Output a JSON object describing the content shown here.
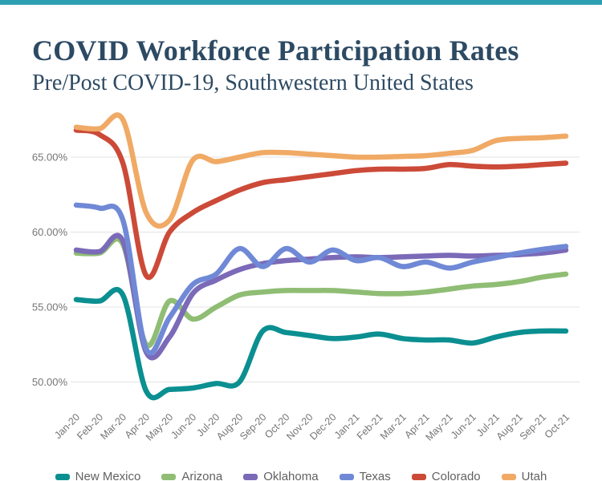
{
  "page": {
    "title": "COVID Workforce Participation Rates",
    "subtitle": "Pre/Post COVID-19, Southwestern United States",
    "accent_bar_color": "#2e9fb0",
    "title_color": "#2d4a63",
    "axis_text_color": "#757575",
    "legend_text_color": "#616161",
    "gridline_color": "#e3e3e3"
  },
  "chart_data": {
    "type": "line",
    "line_style": "smooth",
    "title": "COVID Workforce Participation Rates",
    "subtitle": "Pre/Post COVID-19, Southwestern United States",
    "xlabel": "",
    "ylabel": "",
    "unit": "%",
    "grid": "horizontal",
    "legend_position": "bottom",
    "ylim": [
      48.5,
      68.0
    ],
    "y_ticks": [
      50,
      55,
      60,
      65
    ],
    "y_tick_labels": [
      "50.00%",
      "55.00%",
      "60.00%",
      "65.00%"
    ],
    "categories": [
      "Jan-20",
      "Feb-20",
      "Mar-20",
      "Apr-20",
      "May-20",
      "Jun-20",
      "Jul-20",
      "Aug-20",
      "Sep-20",
      "Oct-20",
      "Nov-20",
      "Dec-20",
      "Jan-21",
      "Feb-21",
      "Mar-21",
      "Apr-21",
      "May-21",
      "Jun-21",
      "Jul-21",
      "Aug-21",
      "Sep-21",
      "Oct-21"
    ],
    "series": [
      {
        "name": "New Mexico",
        "color": "#0b8f91",
        "values": [
          55.5,
          55.4,
          55.8,
          49.4,
          49.5,
          49.6,
          49.9,
          50.0,
          53.4,
          53.3,
          53.1,
          52.9,
          53.0,
          53.2,
          52.9,
          52.8,
          52.8,
          52.6,
          53.0,
          53.3,
          53.4,
          53.4
        ]
      },
      {
        "name": "Arizona",
        "color": "#8fbd74",
        "values": [
          58.6,
          58.6,
          59.2,
          52.5,
          55.4,
          54.2,
          55.0,
          55.8,
          56.0,
          56.1,
          56.1,
          56.1,
          56.0,
          55.9,
          55.9,
          56.0,
          56.2,
          56.4,
          56.5,
          56.7,
          57.0,
          57.2
        ]
      },
      {
        "name": "Oklahoma",
        "color": "#7a6ab8",
        "values": [
          58.8,
          58.7,
          59.4,
          52.0,
          53.0,
          55.9,
          56.8,
          57.5,
          57.9,
          58.1,
          58.2,
          58.3,
          58.35,
          58.3,
          58.35,
          58.4,
          58.45,
          58.4,
          58.45,
          58.5,
          58.6,
          58.8
        ]
      },
      {
        "name": "Texas",
        "color": "#7089d6",
        "values": [
          61.8,
          61.6,
          60.8,
          52.2,
          54.3,
          56.5,
          57.2,
          58.9,
          57.7,
          58.9,
          58.0,
          58.8,
          58.1,
          58.3,
          57.7,
          58.0,
          57.6,
          58.0,
          58.3,
          58.6,
          58.85,
          59.05
        ]
      },
      {
        "name": "Colorado",
        "color": "#cc4a38",
        "values": [
          66.8,
          66.5,
          64.6,
          57.1,
          60.0,
          61.3,
          62.1,
          62.8,
          63.3,
          63.5,
          63.7,
          63.9,
          64.1,
          64.2,
          64.2,
          64.25,
          64.5,
          64.4,
          64.35,
          64.4,
          64.5,
          64.6
        ]
      },
      {
        "name": "Utah",
        "color": "#f0aa65",
        "values": [
          67.0,
          66.9,
          67.5,
          61.3,
          60.8,
          64.8,
          64.7,
          65.0,
          65.3,
          65.3,
          65.2,
          65.1,
          65.0,
          65.0,
          65.05,
          65.1,
          65.25,
          65.45,
          66.1,
          66.25,
          66.3,
          66.4
        ]
      }
    ]
  }
}
